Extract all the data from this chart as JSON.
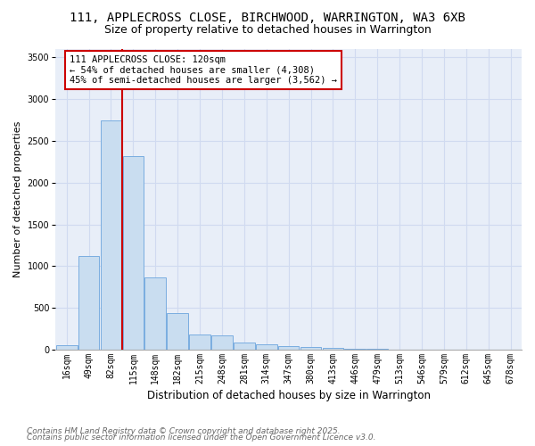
{
  "title": "111, APPLECROSS CLOSE, BIRCHWOOD, WARRINGTON, WA3 6XB",
  "subtitle": "Size of property relative to detached houses in Warrington",
  "xlabel": "Distribution of detached houses by size in Warrington",
  "ylabel": "Number of detached properties",
  "categories": [
    "16sqm",
    "49sqm",
    "82sqm",
    "115sqm",
    "148sqm",
    "182sqm",
    "215sqm",
    "248sqm",
    "281sqm",
    "314sqm",
    "347sqm",
    "380sqm",
    "413sqm",
    "446sqm",
    "479sqm",
    "513sqm",
    "546sqm",
    "579sqm",
    "612sqm",
    "645sqm",
    "678sqm"
  ],
  "values": [
    50,
    1120,
    2750,
    2320,
    870,
    440,
    185,
    170,
    90,
    60,
    45,
    30,
    20,
    12,
    8,
    5,
    4,
    3,
    2,
    2,
    1
  ],
  "bar_color": "#c9ddf0",
  "bar_edge_color": "#7aade0",
  "vline_color": "#cc0000",
  "vline_pos": 2.5,
  "annotation_text": "111 APPLECROSS CLOSE: 120sqm\n← 54% of detached houses are smaller (4,308)\n45% of semi-detached houses are larger (3,562) →",
  "annotation_box_color": "white",
  "annotation_box_edge": "#cc0000",
  "ylim": [
    0,
    3600
  ],
  "yticks": [
    0,
    500,
    1000,
    1500,
    2000,
    2500,
    3000,
    3500
  ],
  "grid_color": "#d0daf0",
  "background_color": "#e8eef8",
  "footnote1": "Contains HM Land Registry data © Crown copyright and database right 2025.",
  "footnote2": "Contains public sector information licensed under the Open Government Licence v3.0.",
  "title_fontsize": 10,
  "subtitle_fontsize": 9,
  "xlabel_fontsize": 8.5,
  "ylabel_fontsize": 8,
  "tick_fontsize": 7,
  "annotation_fontsize": 7.5,
  "footnote_fontsize": 6.5
}
